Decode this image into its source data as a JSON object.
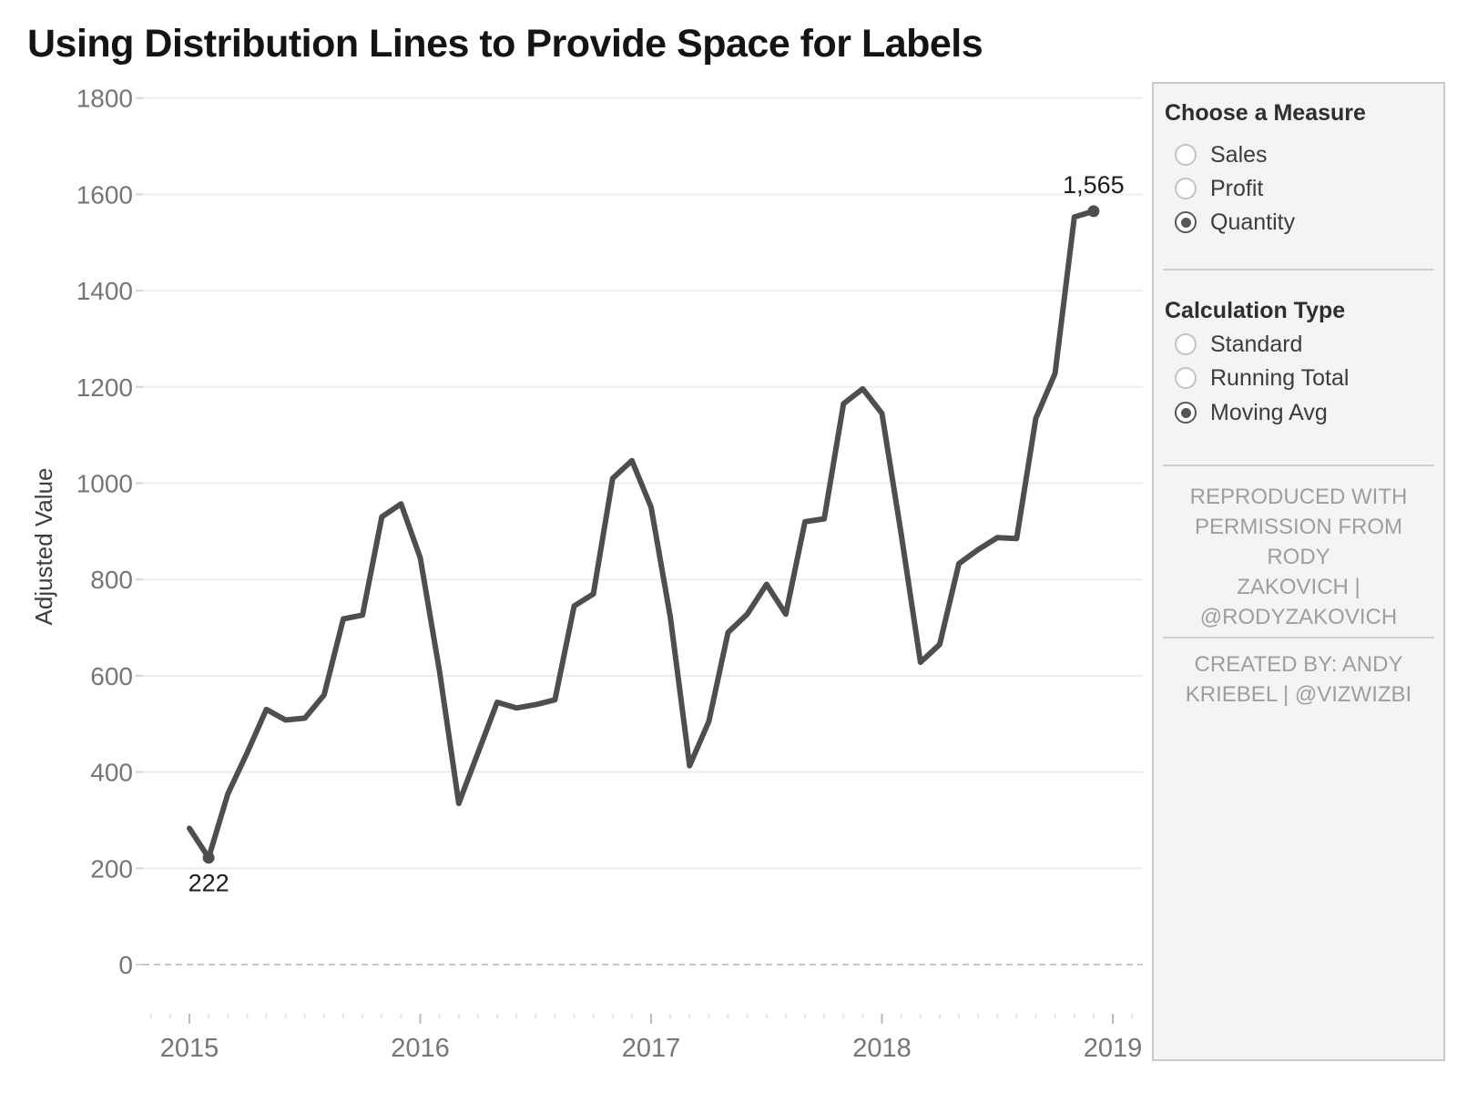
{
  "title": "Using Distribution Lines to Provide Space for Labels",
  "colors": {
    "line": "#4e4e4e",
    "grid": "#ededed",
    "zero_line": "#c6c6c6",
    "axis_text": "#767676",
    "axis_title_text": "#3d3d3d",
    "data_label": "#1c1c1c",
    "month_tick": "#e3e3e3",
    "year_tick": "#b9b9b9"
  },
  "chart_data": {
    "type": "line",
    "title": "Using Distribution Lines to Provide Space for Labels",
    "xlabel": "",
    "ylabel": "Adjusted Value",
    "x_unit": "month",
    "x_range": [
      "2015-01",
      "2018-12"
    ],
    "x_tick_labels": [
      "2015",
      "2016",
      "2017",
      "2018",
      "2019"
    ],
    "y_ticks": [
      0,
      200,
      400,
      600,
      800,
      1000,
      1200,
      1400,
      1600,
      1800
    ],
    "ylim": [
      0,
      1800
    ],
    "grid": "horizontal",
    "legend": "none",
    "series": [
      {
        "name": "Moving Avg of Quantity",
        "values": [
          283,
          222,
          355,
          440,
          530,
          508,
          512,
          560,
          718,
          726,
          930,
          957,
          845,
          610,
          335,
          440,
          545,
          533,
          540,
          550,
          745,
          770,
          1010,
          1047,
          950,
          722,
          413,
          505,
          690,
          728,
          790,
          728,
          920,
          926,
          1165,
          1196,
          1145,
          895,
          628,
          665,
          833,
          862,
          887,
          885,
          1135,
          1228,
          1553,
          1565
        ]
      }
    ],
    "annotations": [
      {
        "label": "222",
        "point_index": 1,
        "position": "below"
      },
      {
        "label": "1,565",
        "point_index": 47,
        "position": "above"
      }
    ]
  },
  "panel": {
    "measure": {
      "header": "Choose a Measure",
      "options": [
        {
          "label": "Sales",
          "selected": false
        },
        {
          "label": "Profit",
          "selected": false
        },
        {
          "label": "Quantity",
          "selected": true
        }
      ]
    },
    "calculation": {
      "header": "Calculation Type",
      "options": [
        {
          "label": "Standard",
          "selected": false
        },
        {
          "label": "Running Total",
          "selected": false
        },
        {
          "label": "Moving Avg",
          "selected": true
        }
      ]
    },
    "attribution_1": [
      "REPRODUCED WITH",
      "PERMISSION FROM RODY",
      "ZAKOVICH |",
      "@RODYZAKOVICH"
    ],
    "attribution_2": [
      "CREATED BY: ANDY",
      "KRIEBEL | @VIZWIZBI"
    ]
  }
}
